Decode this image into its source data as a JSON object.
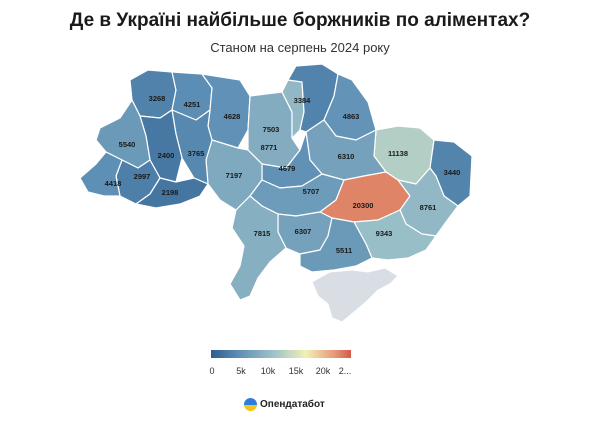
{
  "title": "Де в Україні найбільше боржників по аліментах?",
  "subtitle": "Станом на серпень 2024 року",
  "regions": [
    {
      "id": "volyn",
      "value": "3268",
      "num": 3268
    },
    {
      "id": "rivne",
      "value": "4251",
      "num": 4251
    },
    {
      "id": "zhytomyr",
      "value": "4628",
      "num": 4628
    },
    {
      "id": "kyiv-oblast",
      "value": "7503",
      "num": 7503
    },
    {
      "id": "kyiv-city",
      "value": "8771",
      "num": 8771
    },
    {
      "id": "chernihiv",
      "value": "3384",
      "num": 3384
    },
    {
      "id": "sumy",
      "value": "4863",
      "num": 4863
    },
    {
      "id": "kharkiv",
      "value": "11138",
      "num": 11138
    },
    {
      "id": "luhansk",
      "value": "3440",
      "num": 3440
    },
    {
      "id": "poltava",
      "value": "6310",
      "num": 6310
    },
    {
      "id": "cherkasy",
      "value": "4679",
      "num": 4679
    },
    {
      "id": "vinnytsia",
      "value": "7197",
      "num": 7197
    },
    {
      "id": "khmelnytskyi",
      "value": "3765",
      "num": 3765
    },
    {
      "id": "ternopil",
      "value": "2400",
      "num": 2400
    },
    {
      "id": "lviv",
      "value": "5540",
      "num": 5540
    },
    {
      "id": "ivano-frankivsk",
      "value": "2997",
      "num": 2997
    },
    {
      "id": "zakarpattia",
      "value": "4418",
      "num": 4418
    },
    {
      "id": "chernivtsi",
      "value": "2198",
      "num": 2198
    },
    {
      "id": "kirovohrad",
      "value": "5707",
      "num": 5707
    },
    {
      "id": "dnipro",
      "value": "20300",
      "num": 20300
    },
    {
      "id": "donetsk",
      "value": "8761",
      "num": 8761
    },
    {
      "id": "zaporizhzhia",
      "value": "9343",
      "num": 9343
    },
    {
      "id": "mykolaiv",
      "value": "6307",
      "num": 6307
    },
    {
      "id": "odesa",
      "value": "7815",
      "num": 7815
    },
    {
      "id": "kherson",
      "value": "5511",
      "num": 5511
    }
  ],
  "legend": {
    "ticks": [
      "0",
      "5k",
      "10k",
      "15k",
      "20k",
      "2..."
    ],
    "min": 0,
    "max": 22000,
    "colors": [
      "#2c5d8e",
      "#5e8fb5",
      "#9fc3c9",
      "#f2efb6",
      "#e59a76",
      "#d45b4c"
    ]
  },
  "crimea_color": "#d9dde4",
  "logo": {
    "icon": "opendatabot-icon",
    "text": "Опендатабот"
  }
}
